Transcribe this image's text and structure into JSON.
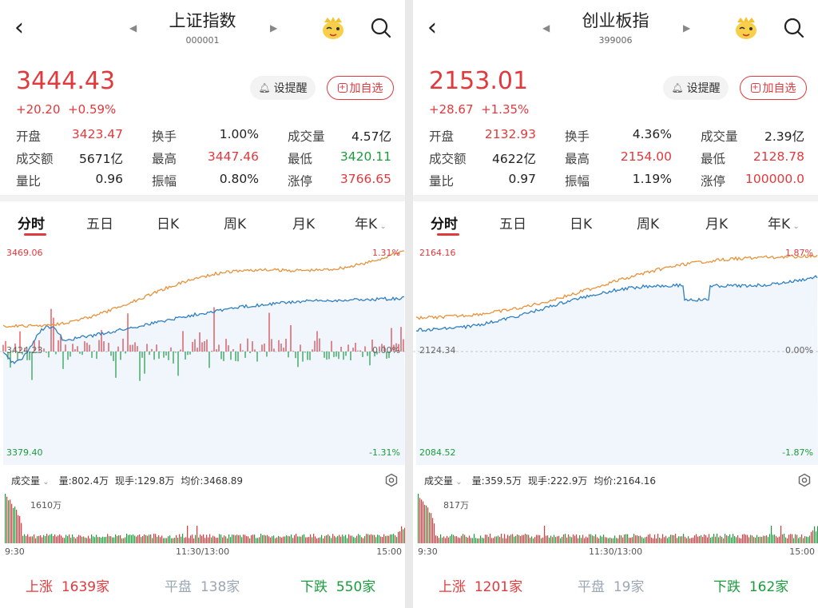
{
  "panels": [
    {
      "title": "上证指数",
      "code": "000001",
      "price": "3444.43",
      "change": "+20.20",
      "change_pct": "+0.59%",
      "remind_label": "设提醒",
      "add_label": "加自选",
      "stats": {
        "open": {
          "label": "开盘",
          "value": "3423.47"
        },
        "turnover_rate": {
          "label": "换手",
          "value": "1.00%"
        },
        "volume": {
          "label": "成交量",
          "value": "4.57亿"
        },
        "amount": {
          "label": "成交额",
          "value": "5671亿"
        },
        "high": {
          "label": "最高",
          "value": "3447.46"
        },
        "low": {
          "label": "最低",
          "value": "3420.11"
        },
        "vol_ratio": {
          "label": "量比",
          "value": "0.96"
        },
        "amplitude": {
          "label": "振幅",
          "value": "0.80%"
        },
        "limit_up": {
          "label": "涨停",
          "value": "3766.65"
        }
      },
      "tabs": [
        "分时",
        "五日",
        "日K",
        "周K",
        "月K",
        "年K"
      ],
      "axis": {
        "top_price": "3469.06",
        "top_pct": "1.31%",
        "mid_price": "3424.23",
        "mid_pct": "0.00%",
        "bottom_price": "3379.40",
        "bottom_pct": "-1.31%"
      },
      "vol_header": {
        "selector": "成交量",
        "qty": "量:802.4万",
        "now": "现手:129.8万",
        "avg": "均价:3468.89",
        "max": "1610万"
      },
      "time_labels": {
        "start": "9:30",
        "mid": "11:30/13:00",
        "end": "15:00"
      },
      "breadth": {
        "up_label": "上涨",
        "up": "1639家",
        "flat_label": "平盘",
        "flat": "138家",
        "down_label": "下跌",
        "down": "550家"
      }
    },
    {
      "title": "创业板指",
      "code": "399006",
      "price": "2153.01",
      "change": "+28.67",
      "change_pct": "+1.35%",
      "remind_label": "设提醒",
      "add_label": "加自选",
      "stats": {
        "open": {
          "label": "开盘",
          "value": "2132.93"
        },
        "turnover_rate": {
          "label": "换手",
          "value": "4.36%"
        },
        "volume": {
          "label": "成交量",
          "value": "2.39亿"
        },
        "amount": {
          "label": "成交额",
          "value": "4622亿"
        },
        "high": {
          "label": "最高",
          "value": "2154.00"
        },
        "low": {
          "label": "最低",
          "value": "2128.78"
        },
        "vol_ratio": {
          "label": "量比",
          "value": "0.97"
        },
        "amplitude": {
          "label": "振幅",
          "value": "1.19%"
        },
        "limit_up": {
          "label": "涨停",
          "value": "100000.0"
        }
      },
      "tabs": [
        "分时",
        "五日",
        "日K",
        "周K",
        "月K",
        "年K"
      ],
      "axis": {
        "top_price": "2164.16",
        "top_pct": "1.87%",
        "mid_price": "2124.34",
        "mid_pct": "0.00%",
        "bottom_price": "2084.52",
        "bottom_pct": "-1.87%"
      },
      "vol_header": {
        "selector": "成交量",
        "qty": "量:359.5万",
        "now": "现手:222.9万",
        "avg": "均价:2164.16",
        "max": "817万"
      },
      "time_labels": {
        "start": "9:30",
        "mid": "11:30/13:00",
        "end": "15:00"
      },
      "breadth": {
        "up_label": "上涨",
        "up": "1201家",
        "flat_label": "平盘",
        "flat": "19家",
        "down_label": "下跌",
        "down": "162家"
      }
    }
  ],
  "colors": {
    "up": "#e2393c",
    "down": "#1a9c3c",
    "price_line": "#e8923a",
    "avg_line": "#2f7fc1",
    "flat": "#9aa7b4"
  }
}
